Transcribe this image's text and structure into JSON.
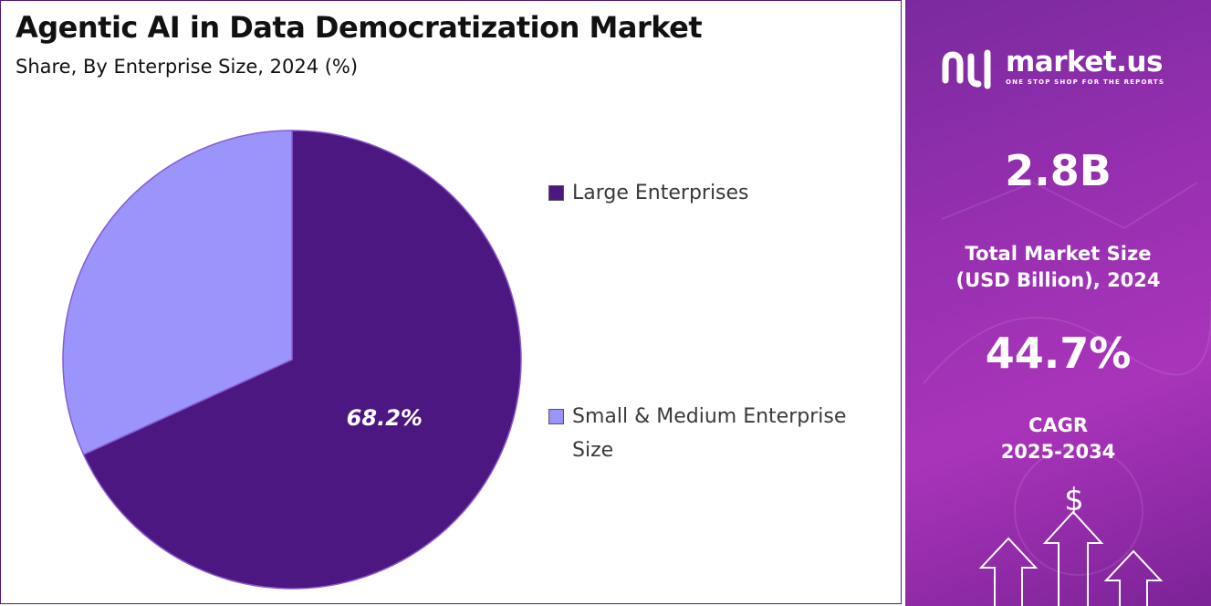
{
  "title": "Agentic AI in Data Democratization Market",
  "subtitle": "Share, By Enterprise Size, 2024 (%)",
  "chart_data": {
    "type": "pie",
    "categories": [
      "Large Enterprises",
      "Small & Medium Enterprise Size"
    ],
    "values": [
      68.2,
      31.8
    ],
    "data_labels": [
      "68.2%",
      ""
    ],
    "colors": [
      "#4d1782",
      "#9a94fb"
    ],
    "legend_position": "right"
  },
  "legend": {
    "item1": "Large Enterprises",
    "item2_line1": "Small & Medium Enterprise",
    "item2_line2": "Size"
  },
  "sidebar": {
    "brand": "market.us",
    "tagline": "ONE STOP SHOP FOR THE REPORTS",
    "market_size": "2.8B",
    "market_size_label_line1": "Total Market Size",
    "market_size_label_line2": "(USD Billion), 2024",
    "cagr": "44.7%",
    "cagr_label_line1": "CAGR",
    "cagr_label_line2": "2025-2034",
    "currency_symbol": "$"
  }
}
